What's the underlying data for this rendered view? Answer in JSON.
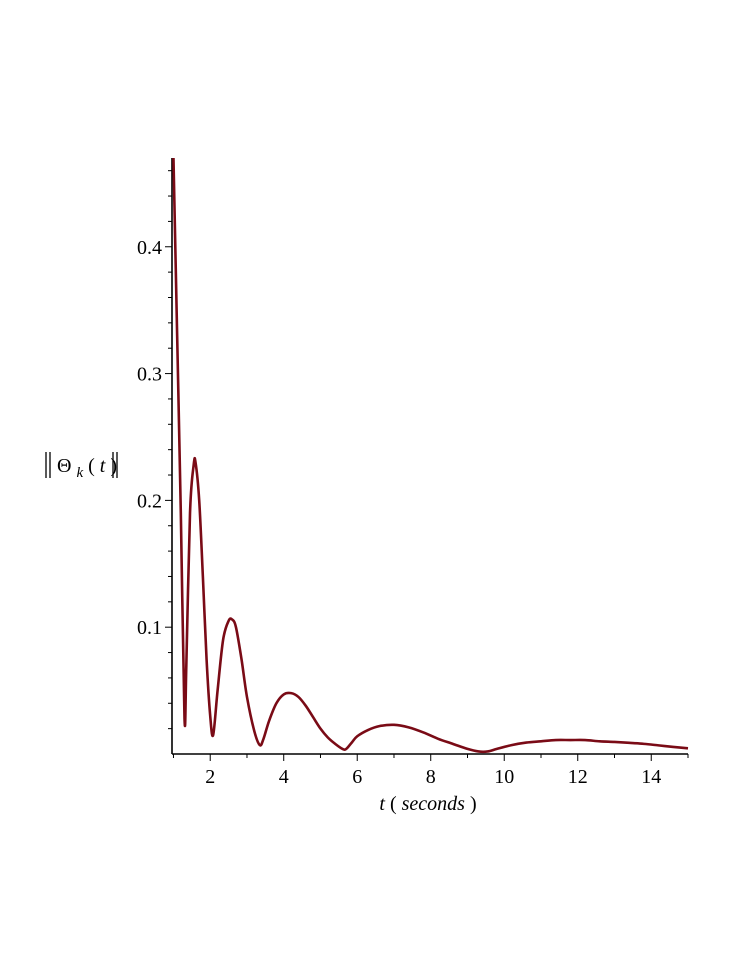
{
  "chart_data": {
    "type": "line",
    "title": "",
    "xlabel": {
      "var": "t",
      "unit": "seconds"
    },
    "ylabel": {
      "symbol": "Θ",
      "subscript": "k",
      "arg": "t"
    },
    "xlim": [
      0.96,
      15
    ],
    "ylim": [
      0,
      0.47
    ],
    "x_ticks": [
      2,
      4,
      6,
      8,
      10,
      12,
      14
    ],
    "y_ticks": [
      0.1,
      0.2,
      0.3,
      0.4
    ],
    "grid": false,
    "series": [
      {
        "color": "#7a0b16",
        "x": [
          1.0,
          1.1,
          1.2,
          1.3,
          1.35,
          1.45,
          1.55,
          1.6,
          1.7,
          1.8,
          1.9,
          2.0,
          2.08,
          2.2,
          2.35,
          2.5,
          2.6,
          2.7,
          2.85,
          3.0,
          3.2,
          3.35,
          3.45,
          3.6,
          3.8,
          4.0,
          4.2,
          4.4,
          4.6,
          4.8,
          5.0,
          5.2,
          5.4,
          5.6,
          5.7,
          5.85,
          6.0,
          6.3,
          6.6,
          7.0,
          7.4,
          7.8,
          8.2,
          8.6,
          9.0,
          9.3,
          9.55,
          9.8,
          10.2,
          10.6,
          11.0,
          11.4,
          11.8,
          12.2,
          12.6,
          13.0,
          13.4,
          13.8,
          14.2,
          14.6,
          15.0
        ],
        "y": [
          0.47,
          0.33,
          0.19,
          0.028,
          0.07,
          0.19,
          0.228,
          0.23,
          0.2,
          0.14,
          0.075,
          0.03,
          0.015,
          0.05,
          0.09,
          0.105,
          0.106,
          0.1,
          0.075,
          0.045,
          0.018,
          0.007,
          0.012,
          0.026,
          0.04,
          0.047,
          0.048,
          0.045,
          0.038,
          0.029,
          0.02,
          0.013,
          0.008,
          0.004,
          0.004,
          0.009,
          0.014,
          0.019,
          0.022,
          0.023,
          0.021,
          0.017,
          0.012,
          0.008,
          0.004,
          0.002,
          0.002,
          0.004,
          0.007,
          0.009,
          0.01,
          0.011,
          0.011,
          0.011,
          0.01,
          0.0095,
          0.0088,
          0.008,
          0.0068,
          0.0056,
          0.0045
        ]
      }
    ]
  }
}
